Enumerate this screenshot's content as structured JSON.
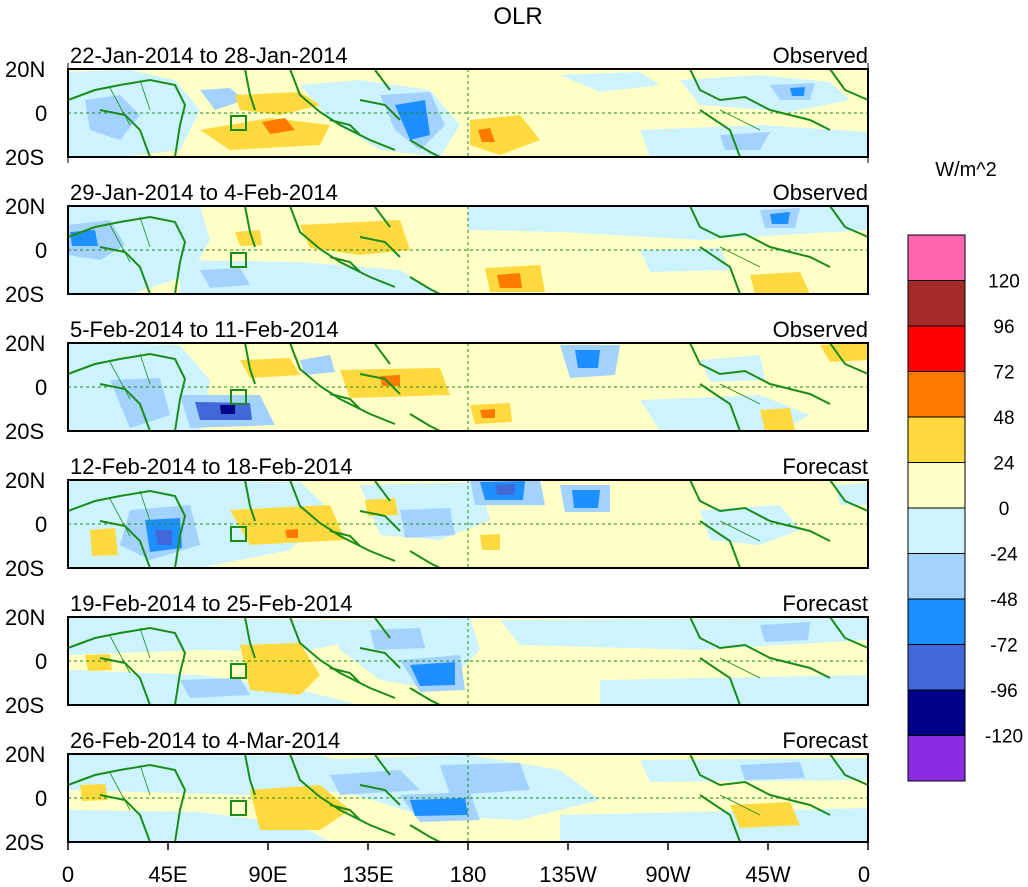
{
  "title": "OLR",
  "units_label": "W/m^2",
  "latitude_labels": [
    "20N",
    "0",
    "20S"
  ],
  "longitude_labels": [
    "0",
    "45E",
    "90E",
    "135E",
    "180",
    "135W",
    "90W",
    "45W",
    "0"
  ],
  "panels": [
    {
      "period": "22-Jan-2014 to 28-Jan-2014",
      "status": "Observed"
    },
    {
      "period": "29-Jan-2014 to 4-Feb-2014",
      "status": "Observed"
    },
    {
      "period": "5-Feb-2014 to 11-Feb-2014",
      "status": "Observed"
    },
    {
      "period": "12-Feb-2014 to 18-Feb-2014",
      "status": "Forecast"
    },
    {
      "period": "19-Feb-2014 to 25-Feb-2014",
      "status": "Forecast"
    },
    {
      "period": "26-Feb-2014 to 4-Mar-2014",
      "status": "Forecast"
    }
  ],
  "legend": {
    "tick_labels": [
      "120",
      "96",
      "72",
      "48",
      "24",
      "0",
      "-24",
      "-48",
      "-72",
      "-96",
      "-120"
    ],
    "colors": [
      "#ff66b2",
      "#a52a2a",
      "#ff0000",
      "#ff7a00",
      "#ffd93d",
      "#ffffc6",
      "#cdf3ff",
      "#a3d2ff",
      "#1e8fff",
      "#4068d9",
      "#00008b",
      "#8b2be6"
    ]
  },
  "map_colors": {
    "background": "#ffffc6",
    "light_blue": "#cdf3ff",
    "mid_blue": "#a3d2ff",
    "blue": "#1e8fff",
    "dark_blue": "#4068d9",
    "yellow": "#ffd93d",
    "orange": "#ff7a00",
    "red": "#ff0000",
    "coast": "#1a8c1a"
  }
}
